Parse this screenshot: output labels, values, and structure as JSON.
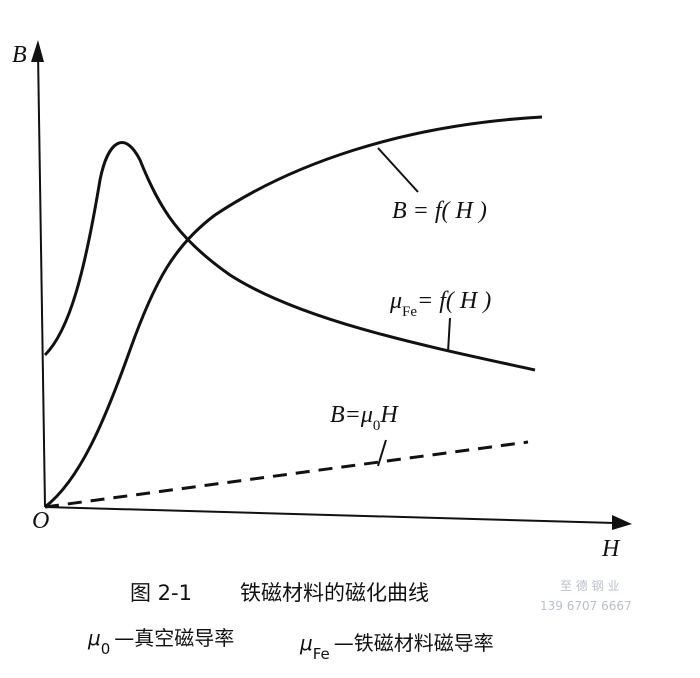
{
  "axes": {
    "y_label": "B",
    "x_label": "H",
    "origin": "O"
  },
  "curve_labels": [
    [
      {
        "text": "B = f( H )"
      }
    ],
    [
      {
        "text": "μ"
      },
      {
        "text": "Fe",
        "sub": true
      },
      {
        "text": "= f( H )"
      }
    ],
    [
      {
        "text": "B=μ"
      },
      {
        "text": "0",
        "sub": true
      },
      {
        "text": "H"
      }
    ]
  ],
  "caption": {
    "number": "图 2-1",
    "title": "铁磁材料的磁化曲线"
  },
  "legend": [
    [
      {
        "text": "μ"
      },
      {
        "text": "0",
        "sub": true
      },
      {
        "text": "—真空磁导率",
        "plain": true
      }
    ],
    [
      {
        "text": "μ"
      },
      {
        "text": "Fe",
        "sub": true
      },
      {
        "text": "—铁磁材料磁导率",
        "plain": true
      }
    ]
  ],
  "watermark": {
    "name": "至 德 钢 业",
    "phone": "139 6707 6667"
  }
}
